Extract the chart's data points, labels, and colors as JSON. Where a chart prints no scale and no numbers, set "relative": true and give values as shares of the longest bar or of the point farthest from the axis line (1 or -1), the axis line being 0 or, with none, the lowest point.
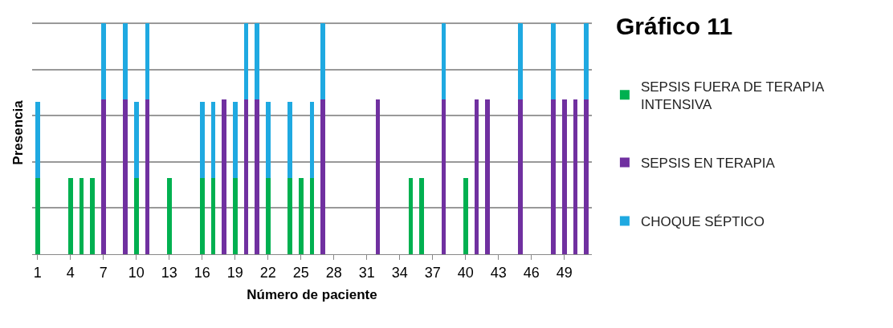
{
  "chart_data": {
    "type": "bar",
    "title": "Gráfico 11",
    "xlabel": "Número de paciente",
    "ylabel": "Presencia",
    "relative": true,
    "stacked": true,
    "grid": "y",
    "legend": "right",
    "categories": [
      "1",
      null,
      null,
      "4",
      null,
      null,
      "7",
      null,
      null,
      "10",
      null,
      null,
      "13",
      null,
      null,
      "16",
      null,
      null,
      "19",
      null,
      null,
      "22",
      null,
      null,
      "25",
      null,
      null,
      "28",
      null,
      null,
      "31",
      null,
      null,
      "34",
      null,
      null,
      "37",
      null,
      null,
      "40",
      null,
      null,
      "43",
      null,
      null,
      "46",
      null,
      null,
      "49",
      null,
      null
    ],
    "series": [
      {
        "name": "SEPSIS FUERA DE TERAPIA INTENSIVA",
        "color": "#00b050",
        "values": [
          0.33,
          null,
          null,
          0.33,
          0.33,
          0.33,
          null,
          null,
          null,
          0.33,
          null,
          null,
          0.33,
          null,
          null,
          0.33,
          0.33,
          null,
          0.33,
          null,
          null,
          0.33,
          null,
          0.33,
          0.33,
          0.33,
          null,
          null,
          null,
          null,
          null,
          null,
          null,
          null,
          0.33,
          0.33,
          null,
          null,
          null,
          0.33,
          null,
          null,
          null,
          null,
          null,
          null,
          null,
          null,
          null,
          null,
          null
        ]
      },
      {
        "name": "SEPSIS EN TERAPIA",
        "color": "#7030a0",
        "values": [
          null,
          null,
          null,
          null,
          null,
          null,
          0.67,
          null,
          0.67,
          null,
          0.67,
          null,
          null,
          null,
          null,
          null,
          null,
          0.67,
          null,
          0.67,
          0.67,
          null,
          null,
          null,
          null,
          null,
          0.67,
          null,
          null,
          null,
          null,
          0.67,
          null,
          null,
          null,
          null,
          null,
          0.67,
          null,
          null,
          0.67,
          0.67,
          null,
          null,
          0.67,
          null,
          null,
          0.67,
          0.67,
          0.67,
          0.67
        ]
      },
      {
        "name": "CHOQUE SÉPTICO",
        "color": "#1fa9e1",
        "values": [
          0.33,
          null,
          null,
          null,
          null,
          null,
          0.33,
          null,
          0.33,
          0.33,
          0.33,
          null,
          null,
          null,
          null,
          0.33,
          0.33,
          null,
          0.33,
          0.33,
          0.33,
          0.33,
          null,
          0.33,
          null,
          0.33,
          0.33,
          null,
          null,
          null,
          null,
          null,
          null,
          null,
          null,
          null,
          null,
          0.33,
          null,
          null,
          null,
          null,
          null,
          null,
          0.33,
          null,
          null,
          0.33,
          null,
          null,
          0.33
        ]
      }
    ]
  }
}
